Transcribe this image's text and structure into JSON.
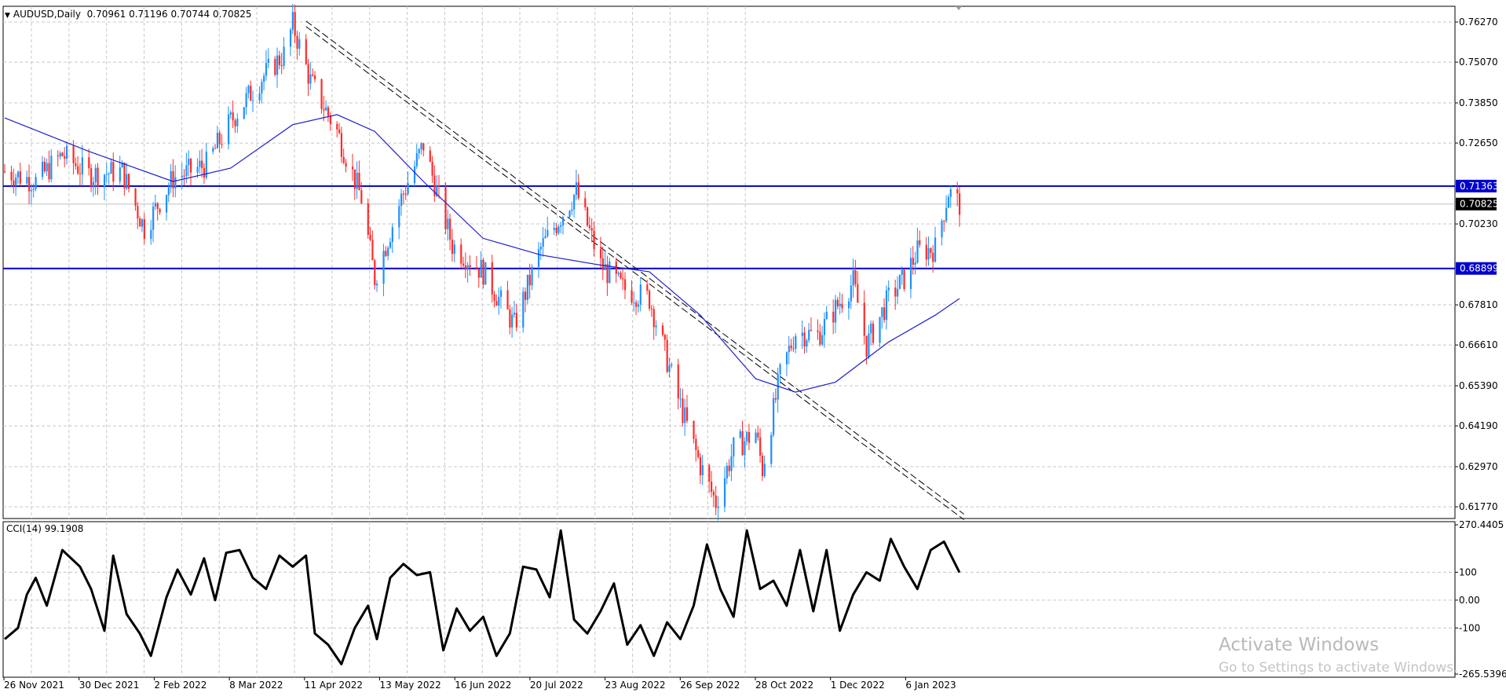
{
  "chart_data": [
    {
      "type": "candlestick",
      "symbol_label": "AUDUSD,Daily",
      "ohlc_label": "0.70961 0.71196 0.70744 0.70825",
      "moving_average": "true",
      "ylim": [
        0.6142,
        0.7674
      ],
      "yticks": [
        "0.76270",
        "0.75070",
        "0.73850",
        "0.72650",
        "0.71363",
        "0.70825",
        "0.70230",
        "0.68899",
        "0.67810",
        "0.66610",
        "0.65390",
        "0.64190",
        "0.62970",
        "0.61770"
      ],
      "horizontal_levels": [
        {
          "value": 0.71363,
          "label": "0.71363",
          "color": "#0000cc"
        },
        {
          "value": 0.68899,
          "label": "0.68899",
          "color": "#0000cc"
        }
      ],
      "current_price": {
        "value": 0.70825,
        "label": "0.70825"
      },
      "trendline_points": [
        [
          "11 Apr 2022",
          0.763
        ],
        [
          "2 Feb 2023",
          0.6155
        ]
      ],
      "x_tick_labels": [
        "26 Nov 2021",
        "30 Dec 2021",
        "2 Feb 2022",
        "8 Mar 2022",
        "11 Apr 2022",
        "13 May 2022",
        "16 Jun 2022",
        "20 Jul 2022",
        "23 Aug 2022",
        "26 Sep 2022",
        "28 Oct 2022",
        "1 Dec 2022",
        "6 Jan 2023"
      ],
      "close_path": [
        [
          "2021-11-26",
          0.718
        ],
        [
          "2021-12-10",
          0.715
        ],
        [
          "2021-12-22",
          0.723
        ],
        [
          "2022-01-03",
          0.717
        ],
        [
          "2022-01-18",
          0.718
        ],
        [
          "2022-01-28",
          0.701
        ],
        [
          "2022-02-10",
          0.716
        ],
        [
          "2022-02-25",
          0.72
        ],
        [
          "2022-03-08",
          0.733
        ],
        [
          "2022-03-22",
          0.746
        ],
        [
          "2022-04-01",
          0.753
        ],
        [
          "2022-04-05",
          0.762
        ],
        [
          "2022-04-13",
          0.745
        ],
        [
          "2022-04-25",
          0.73
        ],
        [
          "2022-05-06",
          0.71
        ],
        [
          "2022-05-12",
          0.686
        ],
        [
          "2022-05-24",
          0.71
        ],
        [
          "2022-06-03",
          0.726
        ],
        [
          "2022-06-16",
          0.696
        ],
        [
          "2022-06-30",
          0.688
        ],
        [
          "2022-07-14",
          0.672
        ],
        [
          "2022-07-26",
          0.695
        ],
        [
          "2022-08-11",
          0.712
        ],
        [
          "2022-08-22",
          0.69
        ],
        [
          "2022-09-01",
          0.683
        ],
        [
          "2022-09-13",
          0.68
        ],
        [
          "2022-09-26",
          0.65
        ],
        [
          "2022-10-06",
          0.63
        ],
        [
          "2022-10-13",
          0.619
        ],
        [
          "2022-10-21",
          0.635
        ],
        [
          "2022-10-31",
          0.64
        ],
        [
          "2022-11-03",
          0.629
        ],
        [
          "2022-11-11",
          0.657
        ],
        [
          "2022-11-18",
          0.67
        ],
        [
          "2022-11-28",
          0.669
        ],
        [
          "2022-12-06",
          0.677
        ],
        [
          "2022-12-14",
          0.685
        ],
        [
          "2022-12-20",
          0.666
        ],
        [
          "2022-12-30",
          0.68
        ],
        [
          "2023-01-06",
          0.686
        ],
        [
          "2023-01-12",
          0.694
        ],
        [
          "2023-01-20",
          0.695
        ],
        [
          "2023-01-26",
          0.712
        ],
        [
          "2023-01-31",
          0.7082
        ]
      ],
      "ma_path": [
        [
          "2021-11-26",
          0.734
        ],
        [
          "2022-01-03",
          0.724
        ],
        [
          "2022-02-10",
          0.715
        ],
        [
          "2022-03-08",
          0.719
        ],
        [
          "2022-04-05",
          0.732
        ],
        [
          "2022-04-25",
          0.735
        ],
        [
          "2022-05-12",
          0.73
        ],
        [
          "2022-06-03",
          0.715
        ],
        [
          "2022-06-30",
          0.698
        ],
        [
          "2022-07-26",
          0.693
        ],
        [
          "2022-08-22",
          0.69
        ],
        [
          "2022-09-13",
          0.688
        ],
        [
          "2022-10-06",
          0.675
        ],
        [
          "2022-10-31",
          0.656
        ],
        [
          "2022-11-18",
          0.652
        ],
        [
          "2022-12-06",
          0.655
        ],
        [
          "2022-12-30",
          0.667
        ],
        [
          "2023-01-20",
          0.675
        ],
        [
          "2023-01-31",
          0.68
        ]
      ]
    },
    {
      "type": "line",
      "indicator_label": "CCI(14) 99.1908",
      "ylim": [
        -265.5396,
        270.4405
      ],
      "yticks": [
        "270.4405",
        "100",
        "0.00",
        "-100",
        "-265.5396"
      ],
      "series": [
        {
          "values_path": [
            [
              "2021-11-26",
              -140
            ],
            [
              "2021-12-02",
              -100
            ],
            [
              "2021-12-06",
              20
            ],
            [
              "2021-12-10",
              80
            ],
            [
              "2021-12-15",
              -20
            ],
            [
              "2021-12-22",
              180
            ],
            [
              "2021-12-30",
              120
            ],
            [
              "2022-01-04",
              40
            ],
            [
              "2022-01-10",
              -110
            ],
            [
              "2022-01-14",
              160
            ],
            [
              "2022-01-20",
              -50
            ],
            [
              "2022-01-26",
              -120
            ],
            [
              "2022-01-31",
              -200
            ],
            [
              "2022-02-07",
              10
            ],
            [
              "2022-02-12",
              110
            ],
            [
              "2022-02-18",
              20
            ],
            [
              "2022-02-24",
              150
            ],
            [
              "2022-03-01",
              0
            ],
            [
              "2022-03-06",
              170
            ],
            [
              "2022-03-12",
              180
            ],
            [
              "2022-03-18",
              80
            ],
            [
              "2022-03-24",
              40
            ],
            [
              "2022-03-30",
              160
            ],
            [
              "2022-04-05",
              120
            ],
            [
              "2022-04-11",
              160
            ],
            [
              "2022-04-15",
              -120
            ],
            [
              "2022-04-21",
              -160
            ],
            [
              "2022-04-27",
              -230
            ],
            [
              "2022-05-03",
              -100
            ],
            [
              "2022-05-09",
              -20
            ],
            [
              "2022-05-13",
              -140
            ],
            [
              "2022-05-19",
              80
            ],
            [
              "2022-05-25",
              130
            ],
            [
              "2022-05-31",
              90
            ],
            [
              "2022-06-06",
              100
            ],
            [
              "2022-06-12",
              -180
            ],
            [
              "2022-06-18",
              -30
            ],
            [
              "2022-06-24",
              -110
            ],
            [
              "2022-06-30",
              -60
            ],
            [
              "2022-07-06",
              -200
            ],
            [
              "2022-07-12",
              -120
            ],
            [
              "2022-07-18",
              120
            ],
            [
              "2022-07-24",
              110
            ],
            [
              "2022-07-30",
              10
            ],
            [
              "2022-08-04",
              250
            ],
            [
              "2022-08-10",
              -70
            ],
            [
              "2022-08-16",
              -120
            ],
            [
              "2022-08-22",
              -40
            ],
            [
              "2022-08-28",
              60
            ],
            [
              "2022-09-03",
              -160
            ],
            [
              "2022-09-09",
              -90
            ],
            [
              "2022-09-15",
              -200
            ],
            [
              "2022-09-21",
              -80
            ],
            [
              "2022-09-27",
              -140
            ],
            [
              "2022-10-03",
              -20
            ],
            [
              "2022-10-09",
              200
            ],
            [
              "2022-10-15",
              40
            ],
            [
              "2022-10-21",
              -60
            ],
            [
              "2022-10-27",
              250
            ],
            [
              "2022-11-02",
              40
            ],
            [
              "2022-11-08",
              70
            ],
            [
              "2022-11-14",
              -20
            ],
            [
              "2022-11-20",
              180
            ],
            [
              "2022-11-26",
              -40
            ],
            [
              "2022-12-02",
              180
            ],
            [
              "2022-12-08",
              -110
            ],
            [
              "2022-12-14",
              20
            ],
            [
              "2022-12-20",
              100
            ],
            [
              "2022-12-26",
              70
            ],
            [
              "2022-12-31",
              220
            ],
            [
              "2023-01-06",
              120
            ],
            [
              "2023-01-12",
              40
            ],
            [
              "2023-01-18",
              180
            ],
            [
              "2023-01-24",
              210
            ],
            [
              "2023-01-31",
              99.1908
            ]
          ]
        }
      ]
    }
  ],
  "ui": {
    "watermark_title": "Activate Windows",
    "watermark_sub": "Go to Settings to activate Windows."
  }
}
